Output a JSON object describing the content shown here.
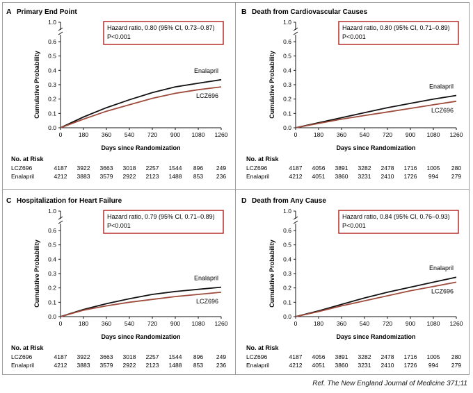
{
  "citation": "Ref. The New England Journal of Medicine 371;11",
  "colors": {
    "enalapril": "#111111",
    "lcz696": "#9e4b3c",
    "hr_box": "#b01c1c"
  },
  "chart_data": [
    {
      "type": "line",
      "letter": "A",
      "title": "Primary End Point",
      "hazard_text": "Hazard ratio, 0.80 (95% CI, 0.73–0.87)",
      "p_text": "P<0.001",
      "xlabel": "Days since Randomization",
      "ylabel": "Cumulative Probability",
      "xlim": [
        0,
        1260
      ],
      "ylim": [
        0,
        0.6
      ],
      "y_break_top": "1.0",
      "xticks": [
        0,
        180,
        360,
        540,
        720,
        900,
        1080,
        1260
      ],
      "yticks": [
        0.0,
        0.1,
        0.2,
        0.3,
        0.4,
        0.5,
        0.6
      ],
      "series": [
        {
          "name": "Enalapril",
          "color": "#111111",
          "x": [
            0,
            180,
            360,
            540,
            720,
            900,
            1080,
            1260
          ],
          "y": [
            0,
            0.075,
            0.14,
            0.195,
            0.245,
            0.285,
            0.31,
            0.335
          ]
        },
        {
          "name": "LCZ696",
          "color": "#9e4b3c",
          "x": [
            0,
            180,
            360,
            540,
            720,
            900,
            1080,
            1260
          ],
          "y": [
            0,
            0.06,
            0.115,
            0.16,
            0.205,
            0.24,
            0.265,
            0.285
          ]
        }
      ],
      "risk": {
        "header": "No. at Risk",
        "rows": [
          {
            "label": "LCZ696",
            "values": [
              "4187",
              "3922",
              "3663",
              "3018",
              "2257",
              "1544",
              "896",
              "249"
            ]
          },
          {
            "label": "Enalapril",
            "values": [
              "4212",
              "3883",
              "3579",
              "2922",
              "2123",
              "1488",
              "853",
              "236"
            ]
          }
        ]
      }
    },
    {
      "type": "line",
      "letter": "B",
      "title": "Death from Cardiovascular Causes",
      "hazard_text": "Hazard ratio, 0.80 (95% CI, 0.71–0.89)",
      "p_text": "P<0.001",
      "xlabel": "Days since Randomization",
      "ylabel": "Cumulative Probability",
      "xlim": [
        0,
        1260
      ],
      "ylim": [
        0,
        0.6
      ],
      "y_break_top": "1.0",
      "xticks": [
        0,
        180,
        360,
        540,
        720,
        900,
        1080,
        1260
      ],
      "yticks": [
        0.0,
        0.1,
        0.2,
        0.3,
        0.4,
        0.5,
        0.6
      ],
      "series": [
        {
          "name": "Enalapril",
          "color": "#111111",
          "x": [
            0,
            180,
            360,
            540,
            720,
            900,
            1080,
            1260
          ],
          "y": [
            0,
            0.035,
            0.07,
            0.105,
            0.14,
            0.17,
            0.2,
            0.225
          ]
        },
        {
          "name": "LCZ696",
          "color": "#9e4b3c",
          "x": [
            0,
            180,
            360,
            540,
            720,
            900,
            1080,
            1260
          ],
          "y": [
            0,
            0.03,
            0.06,
            0.085,
            0.11,
            0.135,
            0.16,
            0.185
          ]
        }
      ],
      "risk": {
        "header": "No. at Risk",
        "rows": [
          {
            "label": "LCZ696",
            "values": [
              "4187",
              "4056",
              "3891",
              "3282",
              "2478",
              "1716",
              "1005",
              "280"
            ]
          },
          {
            "label": "Enalapril",
            "values": [
              "4212",
              "4051",
              "3860",
              "3231",
              "2410",
              "1726",
              "994",
              "279"
            ]
          }
        ]
      }
    },
    {
      "type": "line",
      "letter": "C",
      "title": "Hospitalization for Heart Failure",
      "hazard_text": "Hazard ratio, 0.79 (95% CI, 0.71–0.89)",
      "p_text": "P<0.001",
      "xlabel": "Days since Randomization",
      "ylabel": "Cumulative Probability",
      "xlim": [
        0,
        1260
      ],
      "ylim": [
        0,
        0.6
      ],
      "y_break_top": "1.0",
      "xticks": [
        0,
        180,
        360,
        540,
        720,
        900,
        1080,
        1260
      ],
      "yticks": [
        0.0,
        0.1,
        0.2,
        0.3,
        0.4,
        0.5,
        0.6
      ],
      "series": [
        {
          "name": "Enalapril",
          "color": "#111111",
          "x": [
            0,
            180,
            360,
            540,
            720,
            900,
            1080,
            1260
          ],
          "y": [
            0,
            0.05,
            0.09,
            0.125,
            0.155,
            0.175,
            0.19,
            0.205
          ]
        },
        {
          "name": "LCZ696",
          "color": "#9e4b3c",
          "x": [
            0,
            180,
            360,
            540,
            720,
            900,
            1080,
            1260
          ],
          "y": [
            0,
            0.045,
            0.075,
            0.1,
            0.12,
            0.14,
            0.155,
            0.17
          ]
        }
      ],
      "risk": {
        "header": "No. at Risk",
        "rows": [
          {
            "label": "LCZ696",
            "values": [
              "4187",
              "3922",
              "3663",
              "3018",
              "2257",
              "1544",
              "896",
              "249"
            ]
          },
          {
            "label": "Enalapril",
            "values": [
              "4212",
              "3883",
              "3579",
              "2922",
              "2123",
              "1488",
              "853",
              "236"
            ]
          }
        ]
      }
    },
    {
      "type": "line",
      "letter": "D",
      "title": "Death from Any Cause",
      "hazard_text": "Hazard ratio, 0.84 (95% CI, 0.76–0.93)",
      "p_text": "P<0.001",
      "xlabel": "Days since Randomization",
      "ylabel": "Cumulative Probability",
      "xlim": [
        0,
        1260
      ],
      "ylim": [
        0,
        0.6
      ],
      "y_break_top": "1.0",
      "xticks": [
        0,
        180,
        360,
        540,
        720,
        900,
        1080,
        1260
      ],
      "yticks": [
        0.0,
        0.1,
        0.2,
        0.3,
        0.4,
        0.5,
        0.6
      ],
      "series": [
        {
          "name": "Enalapril",
          "color": "#111111",
          "x": [
            0,
            180,
            360,
            540,
            720,
            900,
            1080,
            1260
          ],
          "y": [
            0,
            0.04,
            0.085,
            0.13,
            0.17,
            0.205,
            0.24,
            0.275
          ]
        },
        {
          "name": "LCZ696",
          "color": "#9e4b3c",
          "x": [
            0,
            180,
            360,
            540,
            720,
            900,
            1080,
            1260
          ],
          "y": [
            0,
            0.035,
            0.075,
            0.11,
            0.145,
            0.18,
            0.21,
            0.24
          ]
        }
      ],
      "risk": {
        "header": "No. at Risk",
        "rows": [
          {
            "label": "LCZ696",
            "values": [
              "4187",
              "4056",
              "3891",
              "3282",
              "2478",
              "1716",
              "1005",
              "280"
            ]
          },
          {
            "label": "Enalapril",
            "values": [
              "4212",
              "4051",
              "3860",
              "3231",
              "2410",
              "1726",
              "994",
              "279"
            ]
          }
        ]
      }
    }
  ]
}
